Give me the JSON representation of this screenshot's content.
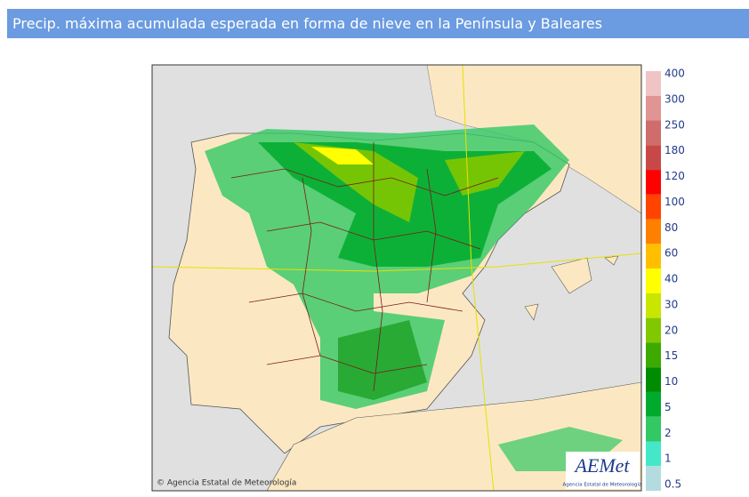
{
  "header": {
    "title": "Precip. máxima acumulada esperada en forma de nieve en la Península y Baleares"
  },
  "legend": {
    "items": [
      {
        "label": "400",
        "color": "#f0c4c4"
      },
      {
        "label": "300",
        "color": "#e09494"
      },
      {
        "label": "250",
        "color": "#d06c6c"
      },
      {
        "label": "180",
        "color": "#c84848"
      },
      {
        "label": "120",
        "color": "#ff0000"
      },
      {
        "label": "100",
        "color": "#ff4400"
      },
      {
        "label": "80",
        "color": "#ff8000"
      },
      {
        "label": "60",
        "color": "#ffbf00"
      },
      {
        "label": "40",
        "color": "#ffff00"
      },
      {
        "label": "30",
        "color": "#c8e600"
      },
      {
        "label": "20",
        "color": "#82c800"
      },
      {
        "label": "15",
        "color": "#3caa00"
      },
      {
        "label": "10",
        "color": "#008c00"
      },
      {
        "label": "5",
        "color": "#00aa2c"
      },
      {
        "label": "2",
        "color": "#32c864"
      },
      {
        "label": "1",
        "color": "#44e8c8"
      },
      {
        "label": "0.5",
        "color": "#b4dce0"
      }
    ]
  },
  "map": {
    "copyright": "© Agencia Estatal de Meteorología",
    "logo": {
      "name": "AEMet",
      "subtitle": "Agencia Estatal de Meteorología"
    }
  }
}
